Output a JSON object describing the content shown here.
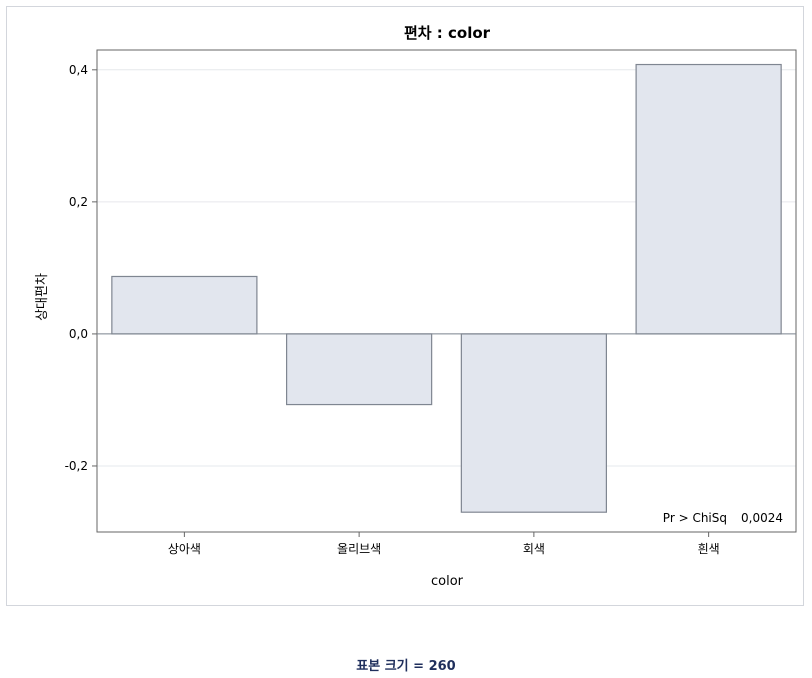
{
  "chart_data": {
    "type": "bar",
    "title": "편차 : color",
    "xlabel": "color",
    "ylabel": "상대편차",
    "categories": [
      "상아색",
      "올리브색",
      "회색",
      "흰색"
    ],
    "values": [
      0.087,
      -0.107,
      -0.27,
      0.408
    ],
    "ylim": [
      -0.3,
      0.43
    ],
    "yticks": [
      -0.2,
      0.0,
      0.2,
      0.4
    ],
    "ytick_labels": [
      "-0,2",
      "0,0",
      "0,2",
      "0,4"
    ],
    "grid": true,
    "inset_label": "Pr > ChiSq",
    "inset_value": "0,0024",
    "colors": {
      "bar_fill": "#e2e6ee",
      "bar_stroke": "#7f8691",
      "grid": "#e6e8ec",
      "axis": "#666666"
    }
  },
  "footnote": "표본 크기 = 260"
}
